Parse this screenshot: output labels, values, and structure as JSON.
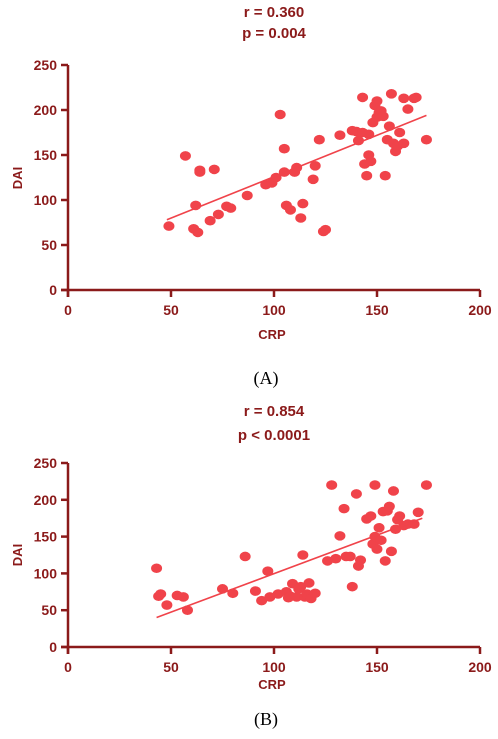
{
  "colors": {
    "axis": "#8b1a1a",
    "point": "#f0434a",
    "fit_line": "#f0434a"
  },
  "chart_data": [
    {
      "type": "scatter",
      "caption": "(A)",
      "stats": [
        "r = 0.360",
        "p = 0.004"
      ],
      "xlabel": "CRP",
      "ylabel": "DAI",
      "xlim": [
        0,
        200
      ],
      "ylim": [
        0,
        250
      ],
      "xticks": [
        0,
        50,
        100,
        150,
        200
      ],
      "yticks": [
        0,
        50,
        100,
        150,
        200,
        250
      ],
      "fit": {
        "x": [
          48,
          174
        ],
        "y": [
          78,
          194
        ]
      },
      "points": [
        [
          49,
          71
        ],
        [
          57,
          149
        ],
        [
          61,
          68
        ],
        [
          62,
          94
        ],
        [
          63,
          64
        ],
        [
          64,
          133
        ],
        [
          64,
          131
        ],
        [
          69,
          77
        ],
        [
          71,
          134
        ],
        [
          73,
          84
        ],
        [
          77,
          93
        ],
        [
          79,
          91
        ],
        [
          87,
          105
        ],
        [
          96,
          117
        ],
        [
          99,
          119
        ],
        [
          101,
          125
        ],
        [
          103,
          195
        ],
        [
          105,
          131
        ],
        [
          105,
          157
        ],
        [
          106,
          94
        ],
        [
          108,
          89
        ],
        [
          110,
          131
        ],
        [
          111,
          136
        ],
        [
          113,
          80
        ],
        [
          114,
          96
        ],
        [
          119,
          123
        ],
        [
          120,
          138
        ],
        [
          122,
          167
        ],
        [
          124,
          65
        ],
        [
          125,
          67
        ],
        [
          132,
          172
        ],
        [
          138,
          177
        ],
        [
          140,
          176
        ],
        [
          141,
          166
        ],
        [
          143,
          214
        ],
        [
          143,
          175
        ],
        [
          144,
          140
        ],
        [
          145,
          127
        ],
        [
          146,
          150
        ],
        [
          146,
          173
        ],
        [
          147,
          143
        ],
        [
          148,
          186
        ],
        [
          149,
          205
        ],
        [
          150,
          210
        ],
        [
          150,
          192
        ],
        [
          151,
          197
        ],
        [
          152,
          199
        ],
        [
          153,
          193
        ],
        [
          154,
          127
        ],
        [
          155,
          167
        ],
        [
          156,
          182
        ],
        [
          157,
          218
        ],
        [
          158,
          163
        ],
        [
          159,
          154
        ],
        [
          160,
          160
        ],
        [
          161,
          175
        ],
        [
          163,
          213
        ],
        [
          163,
          163
        ],
        [
          165,
          201
        ],
        [
          168,
          213
        ],
        [
          169,
          214
        ],
        [
          174,
          167
        ]
      ]
    },
    {
      "type": "scatter",
      "caption": "(B)",
      "stats": [
        "r = 0.854",
        "p < 0.0001"
      ],
      "xlabel": "CRP",
      "ylabel": "DAI",
      "xlim": [
        0,
        200
      ],
      "ylim": [
        0,
        250
      ],
      "xticks": [
        0,
        50,
        100,
        150,
        200
      ],
      "yticks": [
        0,
        50,
        100,
        150,
        200,
        250
      ],
      "fit": {
        "x": [
          43,
          172
        ],
        "y": [
          40,
          175
        ]
      },
      "points": [
        [
          43,
          107
        ],
        [
          44,
          69
        ],
        [
          45,
          72
        ],
        [
          48,
          57
        ],
        [
          53,
          70
        ],
        [
          56,
          68
        ],
        [
          58,
          50
        ],
        [
          75,
          79
        ],
        [
          80,
          73
        ],
        [
          86,
          123
        ],
        [
          91,
          76
        ],
        [
          94,
          63
        ],
        [
          97,
          103
        ],
        [
          98,
          68
        ],
        [
          102,
          72
        ],
        [
          106,
          75
        ],
        [
          107,
          67
        ],
        [
          108,
          69
        ],
        [
          109,
          86
        ],
        [
          111,
          68
        ],
        [
          112,
          79
        ],
        [
          113,
          82
        ],
        [
          114,
          125
        ],
        [
          115,
          68
        ],
        [
          116,
          72
        ],
        [
          117,
          87
        ],
        [
          118,
          66
        ],
        [
          120,
          73
        ],
        [
          126,
          117
        ],
        [
          128,
          220
        ],
        [
          130,
          120
        ],
        [
          132,
          151
        ],
        [
          134,
          188
        ],
        [
          135,
          123
        ],
        [
          137,
          123
        ],
        [
          138,
          82
        ],
        [
          140,
          208
        ],
        [
          141,
          110
        ],
        [
          142,
          118
        ],
        [
          145,
          174
        ],
        [
          147,
          178
        ],
        [
          148,
          140
        ],
        [
          149,
          150
        ],
        [
          149,
          220
        ],
        [
          150,
          133
        ],
        [
          151,
          162
        ],
        [
          152,
          145
        ],
        [
          153,
          184
        ],
        [
          154,
          117
        ],
        [
          155,
          185
        ],
        [
          156,
          191
        ],
        [
          157,
          130
        ],
        [
          158,
          212
        ],
        [
          159,
          160
        ],
        [
          160,
          173
        ],
        [
          161,
          178
        ],
        [
          163,
          165
        ],
        [
          165,
          167
        ],
        [
          168,
          167
        ],
        [
          170,
          183
        ],
        [
          174,
          220
        ]
      ]
    }
  ]
}
